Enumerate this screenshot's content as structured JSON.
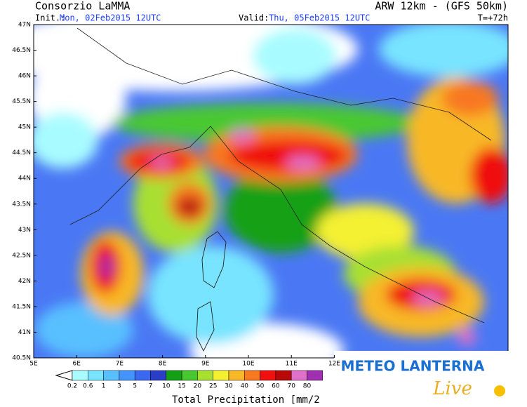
{
  "header": {
    "left_title": "Consorzio LaMMA",
    "right_title": "ARW 12km - (GFS 50km)",
    "init_label": "Init.:",
    "init_value": "Mon, 02Feb2015 12UTC",
    "valid_label": "Valid:",
    "valid_value": "Thu, 05Feb2015 12UTC",
    "lead": "T=+72h"
  },
  "map": {
    "lat_labels": [
      "47N",
      "46.5N",
      "46N",
      "45.5N",
      "45N",
      "44.5N",
      "44N",
      "43.5N",
      "43N",
      "42.5N",
      "42N",
      "41.5N",
      "41N",
      "40.5N"
    ],
    "lon_labels": [
      "5E",
      "6E",
      "7E",
      "8E",
      "9E",
      "10E",
      "11E",
      "12E"
    ]
  },
  "legend": {
    "title": "Total Precipitation [mm/2",
    "labels": [
      "0.2",
      "0.6",
      "1",
      "3",
      "5",
      "7",
      "10",
      "15",
      "20",
      "25",
      "30",
      "40",
      "50",
      "60",
      "70",
      "80"
    ],
    "colors": [
      "#a8fcff",
      "#78e4ff",
      "#58c0ff",
      "#4494ff",
      "#3a68f0",
      "#2c3ec8",
      "#14a014",
      "#48c830",
      "#a8e030",
      "#f4f030",
      "#f8b828",
      "#f87820",
      "#f01010",
      "#b80808",
      "#e070c8",
      "#a030b0"
    ]
  },
  "logo": {
    "name": "METEO LANTERNA",
    "tag": "Live"
  }
}
